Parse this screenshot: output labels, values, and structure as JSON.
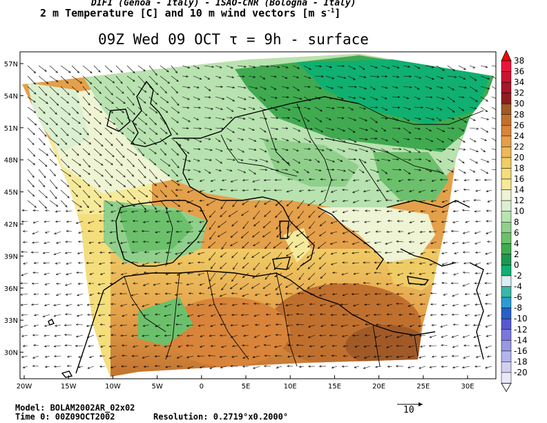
{
  "header": {
    "credit": "DIFI (Genoa - Italy)  -  ISAO-CNR (Bologna - Italy)",
    "variables": "2 m Temperature [C] and 10 m wind vectors [m s",
    "variables_exp": "-1",
    "variables_close": "]"
  },
  "title": "09Z Wed 09 OCT  τ = 9h  -  surface",
  "axes": {
    "lat_labels": [
      "57N",
      "54N",
      "51N",
      "48N",
      "45N",
      "42N",
      "39N",
      "36N",
      "33N",
      "30N"
    ],
    "lon_labels": [
      "20W",
      "15W",
      "10W",
      "5W",
      "0",
      "5E",
      "10E",
      "15E",
      "20E",
      "25E",
      "30E"
    ]
  },
  "colorbar": {
    "labels": [
      "38",
      "36",
      "34",
      "32",
      "30",
      "28",
      "26",
      "24",
      "22",
      "20",
      "18",
      "16",
      "14",
      "12",
      "10",
      "8",
      "6",
      "4",
      "2",
      "0",
      "-2",
      "-4",
      "-6",
      "-8",
      "-10",
      "-12",
      "-14",
      "-16",
      "-18",
      "-20"
    ],
    "colors": [
      "#e8143c",
      "#c81430",
      "#a81428",
      "#8c1e1e",
      "#a05a28",
      "#c0702e",
      "#d8843a",
      "#e4a04a",
      "#ecb85a",
      "#f0cc66",
      "#f4de7c",
      "#f6ea9a",
      "#eef4d4",
      "#daf0d0",
      "#b8e2b0",
      "#90d08c",
      "#6cc06c",
      "#40aa50",
      "#1e9650",
      "#10b070",
      "#dcecf4",
      "#38b8a8",
      "#2a9cd0",
      "#2860c8",
      "#5858d0",
      "#7878dc",
      "#9898e4",
      "#b4b4ec",
      "#d0d0f2",
      "#e8e8f8"
    ],
    "top_arrow_color": "#ff0000"
  },
  "footer": {
    "model": "Model: BOLAM2002AR_02x02",
    "time0": "Time 0: 00Z09OCT2002",
    "resolution": "Resolution: 0.2719°x0.2000°",
    "ref_vector": "10"
  }
}
